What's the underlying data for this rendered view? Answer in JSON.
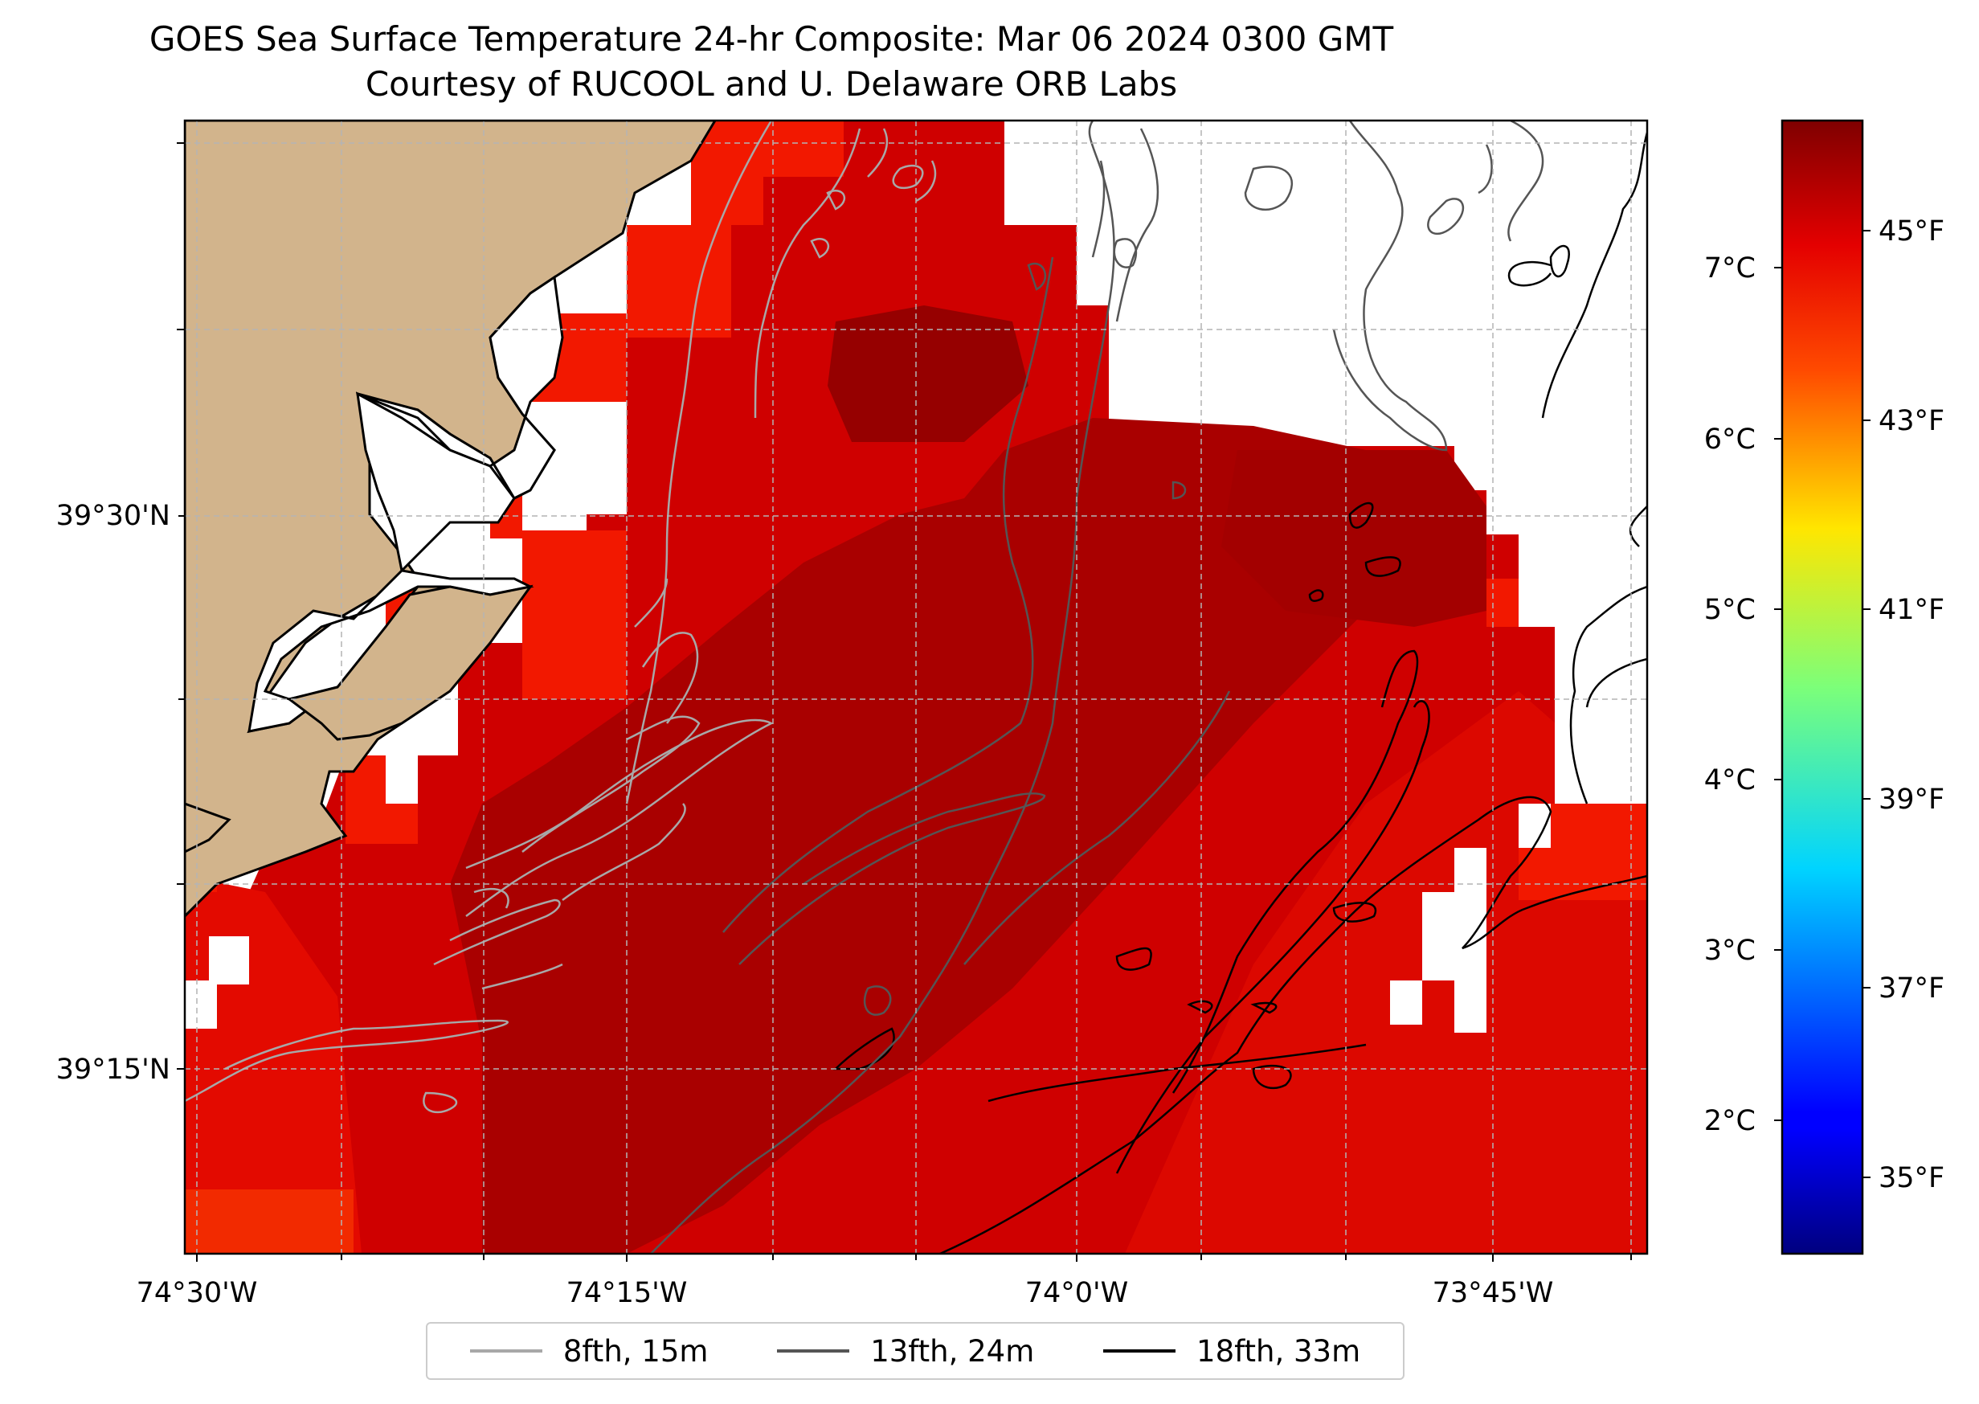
{
  "title": "GOES Sea Surface Temperature 24-hr Composite: Mar 06 2024 0300 GMT",
  "subtitle": "Courtesy of RUCOOL and U. Delaware ORB Labs",
  "map": {
    "x_ticks": [
      "74°30'W",
      "74°15'W",
      "74°0'W",
      "73°45'W"
    ],
    "y_ticks": [
      "39°30'N",
      "39°15'N"
    ],
    "land_color": "#d2b48c",
    "sst_colors": [
      "#d40000",
      "#a80000",
      "#f41800",
      "#9a0000"
    ]
  },
  "colorbar": {
    "celsius_ticks": [
      "7°C",
      "6°C",
      "5°C",
      "4°C",
      "3°C",
      "2°C"
    ],
    "fahrenheit_ticks": [
      "45°F",
      "43°F",
      "41°F",
      "39°F",
      "37°F",
      "35°F"
    ],
    "colormap": "jet"
  },
  "legend": {
    "items": [
      {
        "label": "8fth, 15m",
        "color": "#a8a8a8"
      },
      {
        "label": "13fth, 24m",
        "color": "#555555"
      },
      {
        "label": "18fth, 33m",
        "color": "#000000"
      }
    ]
  }
}
